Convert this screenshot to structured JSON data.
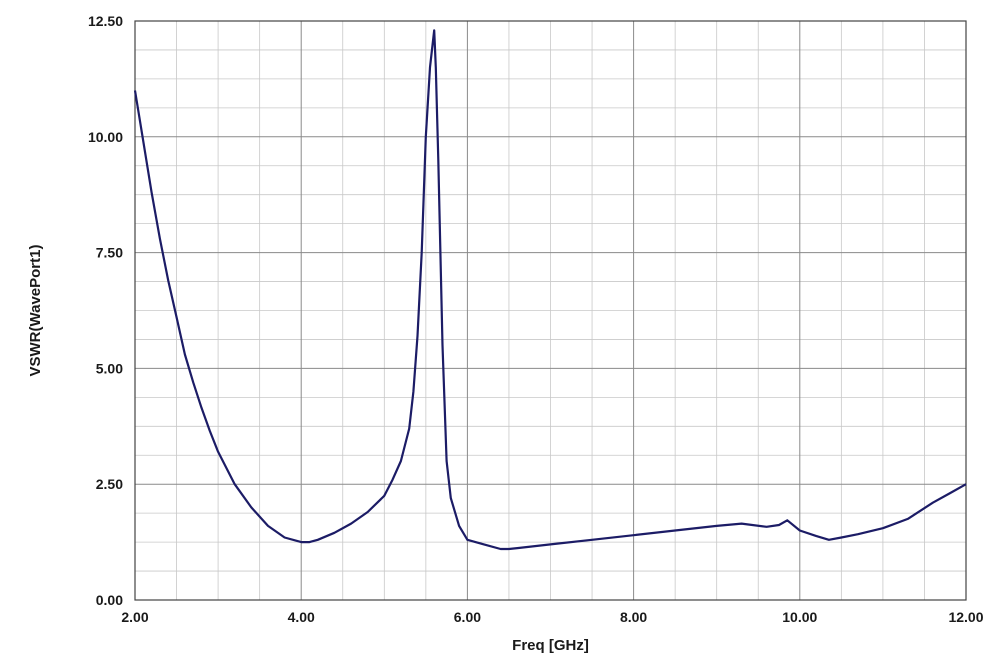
{
  "chart_data": {
    "type": "line",
    "title": "",
    "xlabel": "Freq [GHz]",
    "ylabel": "VSWR(WavePort1)",
    "xlim": [
      2.0,
      12.0
    ],
    "ylim": [
      0.0,
      12.5
    ],
    "x_ticks": [
      "2.00",
      "4.00",
      "6.00",
      "8.00",
      "10.00",
      "12.00"
    ],
    "y_ticks": [
      "0.00",
      "2.50",
      "5.00",
      "7.50",
      "10.00",
      "12.50"
    ],
    "grid": true,
    "line_color": "#1c1c66",
    "series": [
      {
        "x": [
          2.0,
          2.1,
          2.2,
          2.3,
          2.4,
          2.5,
          2.6,
          2.7,
          2.8,
          2.9,
          3.0,
          3.2,
          3.4,
          3.6,
          3.8,
          4.0,
          4.1,
          4.2,
          4.4,
          4.6,
          4.8,
          5.0,
          5.1,
          5.2,
          5.3,
          5.35,
          5.4,
          5.45,
          5.5,
          5.55,
          5.6,
          5.62,
          5.65,
          5.7,
          5.75,
          5.8,
          5.9,
          6.0,
          6.2,
          6.4,
          6.5,
          6.6,
          7.0,
          7.5,
          8.0,
          8.5,
          9.0,
          9.3,
          9.6,
          9.75,
          9.85,
          10.0,
          10.2,
          10.35,
          10.5,
          10.7,
          11.0,
          11.3,
          11.6,
          11.8,
          12.0
        ],
        "y": [
          11.0,
          9.9,
          8.8,
          7.8,
          6.9,
          6.1,
          5.3,
          4.7,
          4.15,
          3.65,
          3.2,
          2.5,
          2.0,
          1.6,
          1.35,
          1.25,
          1.25,
          1.3,
          1.45,
          1.65,
          1.9,
          2.25,
          2.6,
          3.0,
          3.7,
          4.5,
          5.7,
          7.5,
          10.0,
          11.5,
          12.3,
          11.5,
          9.5,
          5.5,
          3.0,
          2.2,
          1.6,
          1.3,
          1.2,
          1.1,
          1.1,
          1.12,
          1.2,
          1.3,
          1.4,
          1.5,
          1.6,
          1.65,
          1.58,
          1.62,
          1.72,
          1.5,
          1.38,
          1.3,
          1.35,
          1.42,
          1.55,
          1.75,
          2.1,
          2.3,
          2.5
        ]
      }
    ]
  }
}
